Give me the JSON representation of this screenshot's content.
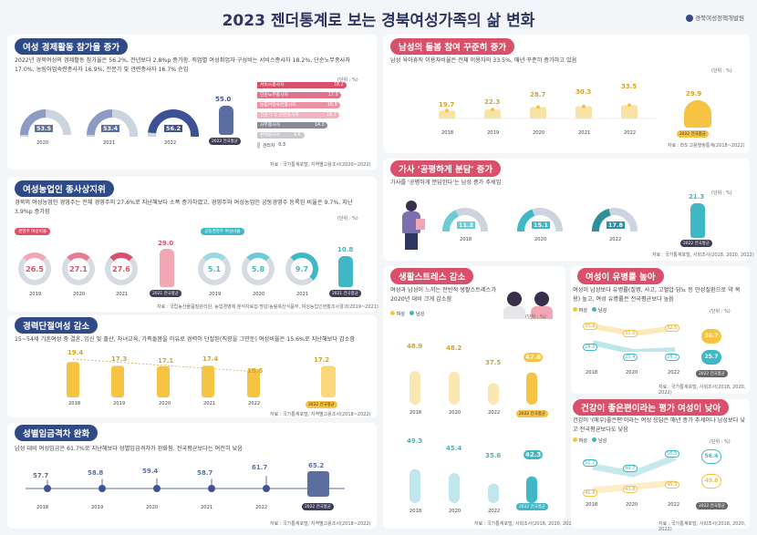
{
  "header": {
    "title": "2023 젠더통계로 보는 경북여성가족의 삶 변화",
    "org": "경북여성정책개발원"
  },
  "unit": "(단위 : %)",
  "s1": {
    "title": "여성 경제활동 참가율 증가",
    "text": "2022년 경북여성의 경제활동 참가율은 56.2%, 전년보다 2.8%p 증가함. 직업별 여성취업자 구성비는 서비스종사자 18.2%, 단순노무종사자 17.0%, 농림어업숙련종사자 16.9%, 전문가 및 관련종사자 16.7% 순임",
    "years": [
      "2020",
      "2021",
      "2022"
    ],
    "values": [
      "53.5",
      "53.4",
      "56.2"
    ],
    "national": "55.0",
    "national_label": "2022 전국평균",
    "jobs": [
      {
        "label": "서비스종사자",
        "value": "18.2"
      },
      {
        "label": "단순노무종사자",
        "value": "17.0"
      },
      {
        "label": "농림어업숙련종사자",
        "value": "16.9"
      },
      {
        "label": "전문가 및 관련종사자",
        "value": "16.7"
      },
      {
        "label": "사무종사자",
        "value": "14.3"
      },
      {
        "label": "판매종사자",
        "value": "9.6"
      },
      {
        "label": "관리자",
        "value": "0.3"
      }
    ],
    "source": "자료 : 국가통계포털, 지역별고용조사(2020~2022)"
  },
  "s2": {
    "title": "여성농업인 종사상지위",
    "text": "경북의 여성농업인 경영주는 전체 경영주의 27.6%로 지난해보다 소폭 증가하였고, 경영주와 여성농업인 공동경영주 등록된 비율은 9.7%, 지난 3.9%p 증가함",
    "left_tag": "경영주 여성비율",
    "right_tag": "공동경영주 여성비율",
    "years": [
      "2019",
      "2020",
      "2021"
    ],
    "left": [
      "26.5",
      "27.1",
      "27.6"
    ],
    "left_nat": "29.0",
    "right": [
      "5.1",
      "5.8",
      "9.7"
    ],
    "right_nat": "10.8",
    "nat_label": "2021 전국평균",
    "source": "자료 : 국립농산물품질관리원, 농업경영체 분석자료집·명감/농림축산식품부, 여성농업인현황조사결과(2019~2021)"
  },
  "s3": {
    "title": "경력단절여성 감소",
    "text": "15~54세 기혼여성 중 결혼, 임신 및 출산, 자녀교육, 가족돌봄을 이유로 경력이 단절된(직장을 그만둔) 여성비율은 15.6%로 지난해보다 감소함",
    "years": [
      "2018",
      "2019",
      "2020",
      "2021",
      "2022"
    ],
    "values": [
      "19.4",
      "17.3",
      "17.1",
      "17.4",
      "15.6"
    ],
    "national": "17.2",
    "nat_label": "2022 전국평균",
    "source": "자료 : 국가통계포털, 지역별고용조사(2018~2022)"
  },
  "s4": {
    "title": "성별임금격차 완화",
    "text": "남성 대비 여성임금은 61.7%로 지난해보다 성별임금격차가 완화됨. 전국평균보다는 여전히 낮음",
    "years": [
      "2018",
      "2019",
      "2020",
      "2021",
      "2022"
    ],
    "values": [
      "57.7",
      "58.8",
      "59.4",
      "58.7",
      "61.7"
    ],
    "national": "65.2",
    "nat_label": "2022 전국평균",
    "source": "자료 : 국가통계포털, 지역별고용조사(2018~2022)"
  },
  "s5": {
    "title": "남성의 돌봄 참여 꾸준히 증가",
    "text": "남성 육아휴직 이용자비율은 전체 이용자의 33.5%, 매년 꾸준히 증가하고 있음",
    "years": [
      "2018",
      "2019",
      "2020",
      "2021",
      "2022"
    ],
    "values": [
      "19.7",
      "22.3",
      "28.7",
      "30.3",
      "33.5"
    ],
    "national": "29.9",
    "nat_label": "2022 전국평균",
    "source": "자료 : EIS 고용행정통계(2018~2022)"
  },
  "s6": {
    "title": "가사 '공평하게 분담' 증가",
    "text": "가사를 '공평하게 분담한다'는 남성 증가 추세임",
    "years": [
      "2018",
      "2020",
      "2022"
    ],
    "values": [
      "11.2",
      "15.1",
      "17.8"
    ],
    "national": "21.3",
    "nat_label": "2022 전국평균",
    "source": "자료 : 국가통계포털, 사회조사(2018, 2020, 2022)"
  },
  "s7": {
    "title": "생활스트레스 감소",
    "text": "여성과 남성이 느끼는 전반적 생활스트레스가 2020년 대비 크게 감소함",
    "legend_f": "여성",
    "legend_m": "남성",
    "years": [
      "2018",
      "2020",
      "2022"
    ],
    "female": [
      "48.9",
      "48.2",
      "37.5"
    ],
    "female_nat": "47.6",
    "male": [
      "49.3",
      "45.4",
      "35.6"
    ],
    "male_nat": "42.3",
    "nat_label": "2022 전국평균",
    "source": "자료 : 국가통계포털, 사회조사(2018, 2020, 2022)"
  },
  "s8": {
    "title": "여성이 유병률 높아",
    "text": "여성이 남성보다 유병률(질병, 사고, 고혈압·당뇨 등 만성질환으로 약 복용) 높고, 여성 유병률은 전국평균보다 높음",
    "legend_f": "여성",
    "legend_m": "남성",
    "years": [
      "2018",
      "2020",
      "2022"
    ],
    "female": [
      "35.9",
      "31.0",
      "32.5"
    ],
    "female_nat": "30.7",
    "male": [
      "28.0",
      "25.4",
      "25.7"
    ],
    "male_nat": "25.7",
    "nat_label": "2022 전국평균",
    "source": "자료 : 국가통계포털, 사회조사(2018, 2020, 2022)"
  },
  "s9": {
    "title": "건강이 좋은편이라는 평가 여성이 낮아",
    "text": "건강이 '(매우)좋은편'이라는 여성 응답은 매년 증가 추세이나 남성보다 낮고 전국평균보다도 낮음",
    "legend_f": "여성",
    "legend_m": "남성",
    "years": [
      "2018",
      "2020",
      "2022"
    ],
    "female": [
      "41.6",
      "43.8",
      "45.3"
    ],
    "female_nat": "49.8",
    "male": [
      "51.7",
      "49.7",
      "56.5"
    ],
    "male_nat": "56.4",
    "nat_label": "2022 전국평균",
    "source": "자료 : 국가통계포털, 사회조사(2018, 2020, 2022)"
  },
  "colors": {
    "navy": "#2f4b86",
    "pink": "#d9506a",
    "yellow": "#f6c343",
    "teal": "#3fb7c4",
    "purple": "#5a6ea0"
  }
}
